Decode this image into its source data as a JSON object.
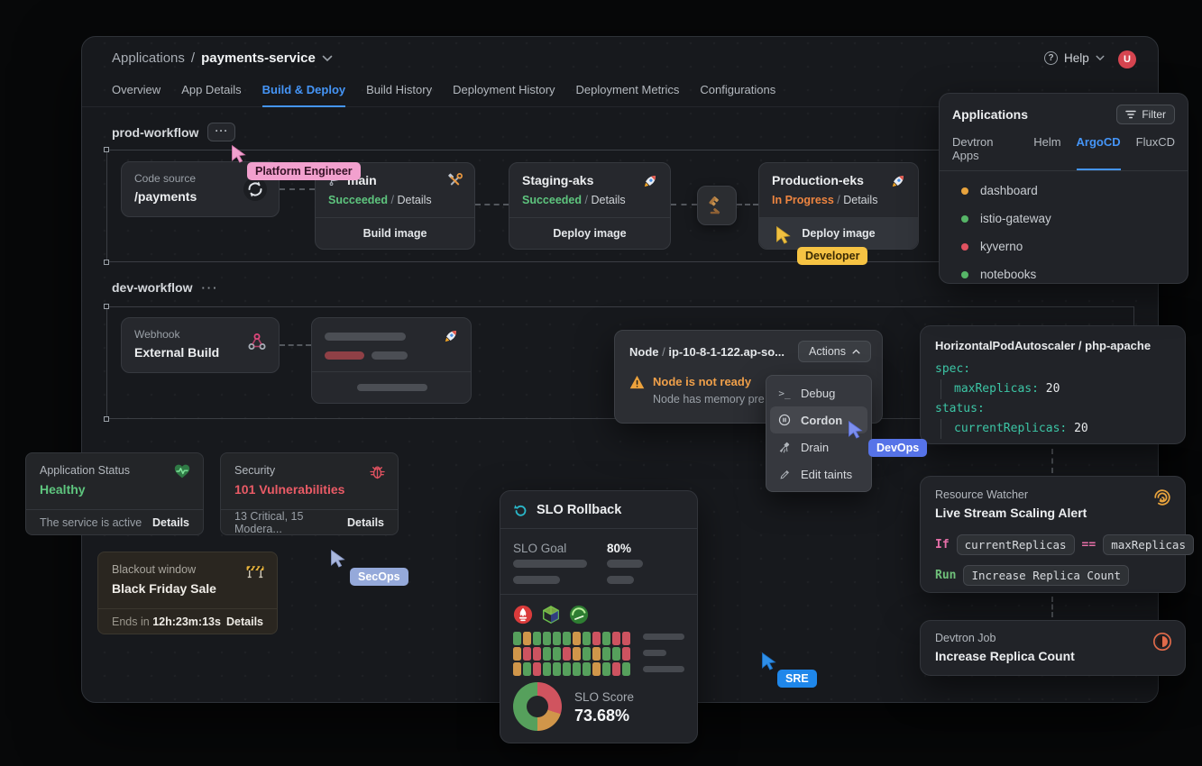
{
  "header": {
    "breadcrumb": {
      "section": "Applications",
      "separator": "/",
      "app": "payments-service"
    },
    "help_label": "Help",
    "avatar_initial": "U",
    "tabs": [
      "Overview",
      "App Details",
      "Build & Deploy",
      "Build History",
      "Deployment History",
      "Deployment Metrics",
      "Configurations"
    ],
    "active_tab": "Build & Deploy"
  },
  "prod_workflow": {
    "title": "prod-workflow",
    "more_label": "···",
    "code_source": {
      "label": "Code source",
      "value": "/payments"
    },
    "build": {
      "branch": "main",
      "status": "Succeeded",
      "separator": "/",
      "details": "Details",
      "action": "Build image"
    },
    "staging": {
      "name": "Staging-aks",
      "status": "Succeeded",
      "separator": "/",
      "details": "Details",
      "action": "Deploy image"
    },
    "production": {
      "name": "Production-eks",
      "status": "In Progress",
      "separator": "/",
      "details": "Details",
      "action": "Deploy image"
    }
  },
  "dev_workflow": {
    "title": "dev-workflow",
    "more_label": "···",
    "webhook": {
      "label": "Webhook",
      "value": "External Build"
    }
  },
  "applications_panel": {
    "title": "Applications",
    "filter_label": "Filter",
    "tabs": [
      "Devtron Apps",
      "Helm",
      "ArgoCD",
      "FluxCD"
    ],
    "active_tab": "ArgoCD",
    "items": [
      {
        "name": "dashboard",
        "status_color": "#e8a33d"
      },
      {
        "name": "istio-gateway",
        "status_color": "#56b567"
      },
      {
        "name": "kyverno",
        "status_color": "#e05260"
      },
      {
        "name": "notebooks",
        "status_color": "#56b567"
      }
    ]
  },
  "node_panel": {
    "title_prefix": "Node",
    "separator": "/",
    "name": "ip-10-8-1-122.ap-so...",
    "actions_label": "Actions",
    "alert_title": "Node is not ready",
    "alert_sub": "Node has memory pre",
    "menu": [
      {
        "label": "Debug"
      },
      {
        "label": "Cordon",
        "active": true
      },
      {
        "label": "Drain"
      },
      {
        "label": "Edit taints"
      }
    ]
  },
  "hpa_panel": {
    "title": "HorizontalPodAutoscaler / php-apache",
    "lines": [
      {
        "key": "spec:",
        "value": ""
      },
      {
        "key": "maxReplicas:",
        "value": "20"
      },
      {
        "key": "status:",
        "value": ""
      },
      {
        "key": "currentReplicas:",
        "value": "20"
      }
    ]
  },
  "status_card": {
    "title": "Application Status",
    "value": "Healthy",
    "footer": "The service is active",
    "details": "Details"
  },
  "security_card": {
    "title": "Security",
    "value": "101 Vulnerabilities",
    "footer": "13 Critical, 15 Modera...",
    "details": "Details"
  },
  "blackout_card": {
    "title": "Blackout window",
    "value": "Black Friday Sale",
    "footer_prefix": "Ends in",
    "countdown": "12h:23m:13s",
    "details": "Details"
  },
  "slo_panel": {
    "title": "SLO Rollback",
    "goal_label": "SLO Goal",
    "goal_value": "80%",
    "score_label": "SLO Score",
    "score_value": "73.68%",
    "donut": [
      {
        "name": "breach",
        "color": "#d0545f",
        "pct": 30
      },
      {
        "name": "warning",
        "color": "#d0964a",
        "pct": 20
      },
      {
        "name": "healthy",
        "color": "#56a05c",
        "pct": 50
      }
    ],
    "heatmap": {
      "colors": {
        "g": "#56a05c",
        "o": "#d0964a",
        "r": "#cd5360"
      },
      "rows": [
        [
          "g",
          "o",
          "g",
          "g",
          "g",
          "g",
          "o",
          "g",
          "r",
          "g",
          "r",
          "r"
        ],
        [
          "o",
          "r",
          "r",
          "g",
          "g",
          "r",
          "o",
          "g",
          "o",
          "g",
          "g",
          "r"
        ],
        [
          "o",
          "g",
          "r",
          "g",
          "g",
          "g",
          "g",
          "g",
          "o",
          "g",
          "r",
          "g"
        ]
      ]
    }
  },
  "resource_watcher": {
    "title": "Resource Watcher",
    "subtitle": "Live Stream Scaling Alert",
    "if_label": "If",
    "cond_left": "currentReplicas",
    "operator": "==",
    "cond_right": "maxReplicas",
    "run_label": "Run",
    "run_action": "Increase Replica Count"
  },
  "job_panel": {
    "title": "Devtron Job",
    "value": "Increase Replica Count"
  },
  "cursors": {
    "platform_engineer": "Platform Engineer",
    "developer": "Developer",
    "devops": "DevOps",
    "secops": "SecOps",
    "sre": "SRE"
  },
  "colors": {
    "accent_blue": "#4595f7",
    "green": "#5ec57e",
    "orange": "#ee8540",
    "red": "#ea5b66",
    "teal": "#3cc5a5"
  }
}
